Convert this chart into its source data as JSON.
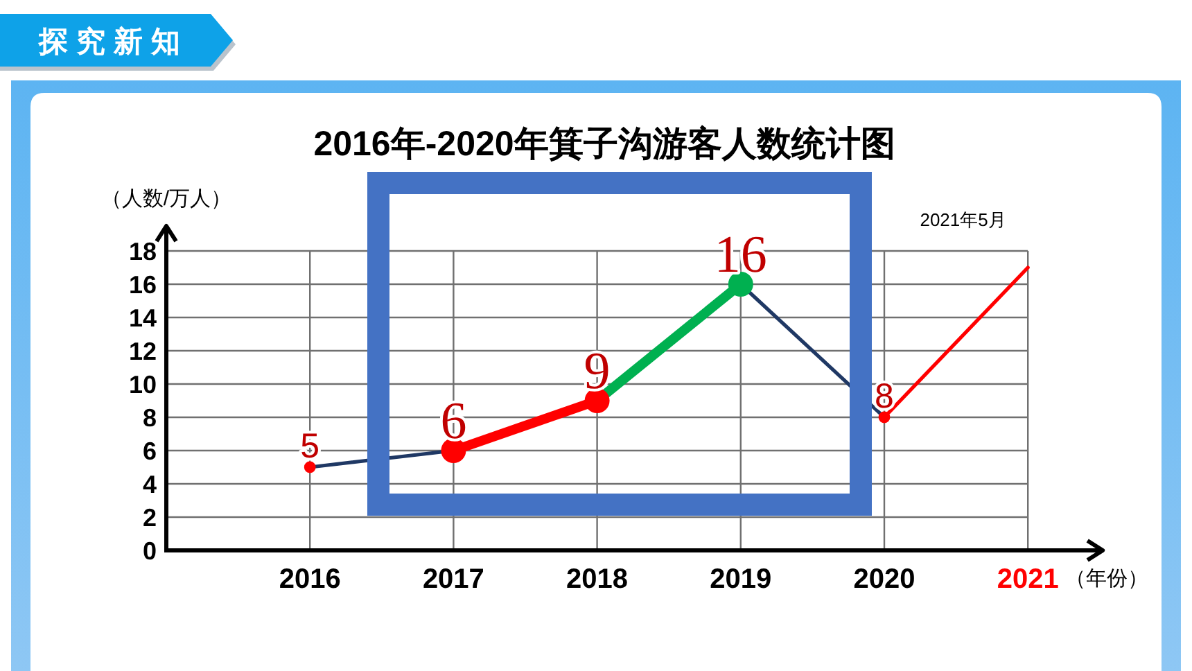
{
  "chart_data": {
    "type": "line",
    "title": "2016年-2020年箕子沟游客人数统计图",
    "xlabel": "（年份）",
    "ylabel": "（人数/万人）",
    "categories": [
      "2016",
      "2017",
      "2018",
      "2019",
      "2020",
      "2021"
    ],
    "ylim": [
      0,
      18
    ],
    "yticks": [
      0,
      2,
      4,
      6,
      8,
      10,
      12,
      14,
      16,
      18
    ],
    "grid": true,
    "series": [
      {
        "color": "#1f3864",
        "values": [
          5,
          6,
          null,
          16,
          8,
          null
        ]
      },
      {
        "color": "#ff0000",
        "values": [
          null,
          6,
          9,
          null,
          null,
          null
        ]
      },
      {
        "color": "#00b050",
        "values": [
          null,
          null,
          9,
          16,
          null,
          null
        ]
      },
      {
        "color": "#ff0000",
        "values": [
          null,
          null,
          null,
          null,
          8,
          17
        ]
      },
      {
        "type": "scatter",
        "color": "#ff0000",
        "values": [
          5,
          null,
          null,
          null,
          8,
          null
        ],
        "value_labels": [
          "5",
          null,
          null,
          null,
          "8",
          null
        ]
      },
      {
        "type": "scatter",
        "colors": [
          null,
          "#ff0000",
          "#ff0000",
          "#00b050",
          null,
          null
        ],
        "values": [
          null,
          6,
          9,
          16,
          null,
          null
        ],
        "value_labels": [
          null,
          "6",
          "9",
          "16",
          null,
          null
        ]
      }
    ],
    "annotations": [
      "探究新知",
      "2021年5月"
    ]
  }
}
